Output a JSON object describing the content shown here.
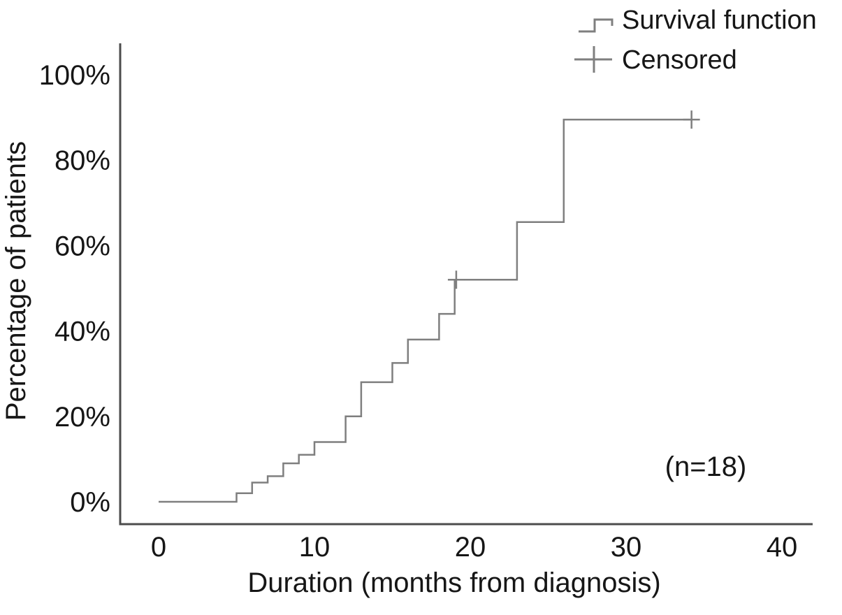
{
  "chart_data": {
    "type": "line",
    "subtype": "step-post-survival",
    "title": "",
    "xlabel": "Duration (months from diagnosis)",
    "ylabel": "Percentage of patients",
    "xlim": [
      0,
      42
    ],
    "ylim": [
      0,
      107
    ],
    "xticks": [
      0,
      10,
      20,
      30,
      40
    ],
    "yticks": [
      0,
      20,
      40,
      60,
      80,
      100
    ],
    "ytick_suffix": "%",
    "grid": false,
    "legend": [
      "Survival function",
      "Censored"
    ],
    "legend_position": "top-right",
    "annotation": "(n=18)",
    "annotation_xy": [
      35.1,
      8.2
    ],
    "series": [
      {
        "name": "Survival function",
        "style": "step-post",
        "color": "#7f7f7f",
        "points": [
          [
            0,
            0
          ],
          [
            5,
            2
          ],
          [
            6,
            4.5
          ],
          [
            7,
            6
          ],
          [
            8,
            9
          ],
          [
            9,
            11
          ],
          [
            10,
            14
          ],
          [
            12,
            20
          ],
          [
            13,
            28
          ],
          [
            15,
            32.5
          ],
          [
            16,
            38
          ],
          [
            18,
            44
          ],
          [
            19,
            52
          ],
          [
            23,
            65.5
          ],
          [
            26,
            89.5
          ]
        ],
        "end_x": 34.2
      }
    ],
    "censored_points": [
      [
        19.1,
        52
      ],
      [
        34.2,
        89.5
      ]
    ],
    "colors": {
      "curve": "#7f7f7f",
      "axis": "#4c4c4c",
      "text": "#161616"
    }
  }
}
